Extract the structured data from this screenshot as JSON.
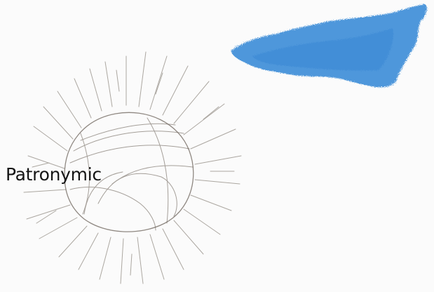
{
  "label": {
    "text": "Patronymic"
  },
  "colors": {
    "paper": "#fbfbfb",
    "pencil": "#6b6258",
    "blue_patch": "#3f8fd9",
    "text": "#151515"
  },
  "icons": {
    "drawing": "yarn-ball-sun-sketch",
    "patch": "blue-crayon-patch"
  }
}
